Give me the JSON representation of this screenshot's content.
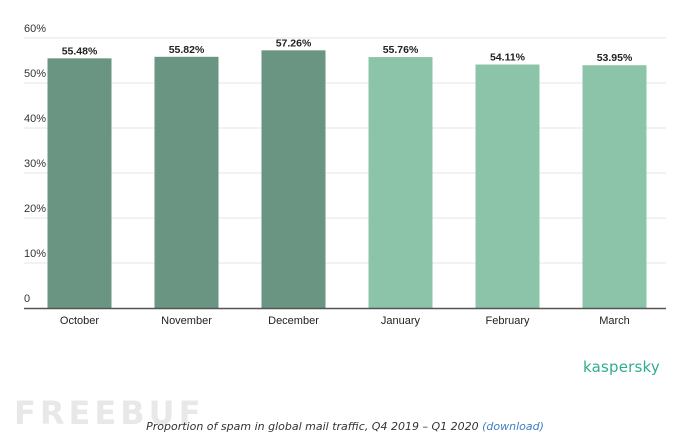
{
  "chart_data": {
    "type": "bar",
    "categories": [
      "October",
      "November",
      "December",
      "January",
      "February",
      "March"
    ],
    "values": [
      55.48,
      55.82,
      57.26,
      55.76,
      54.11,
      53.95
    ],
    "value_labels": [
      "55.48%",
      "55.82%",
      "57.26%",
      "55.76%",
      "54.11%",
      "53.95%"
    ],
    "ylim": [
      0,
      60
    ],
    "y_ticks": [
      0,
      10,
      20,
      30,
      40,
      50,
      60
    ],
    "y_tick_labels": [
      "0",
      "10%",
      "20%",
      "30%",
      "40%",
      "50%",
      "60%"
    ],
    "grid": true,
    "bar_colors": [
      "#6a9582",
      "#6a9582",
      "#6a9582",
      "#8cc4a9",
      "#8cc4a9",
      "#8cc4a9"
    ],
    "grid_color": "#e4e4e4",
    "axis_color": "#555555"
  },
  "brand": {
    "name": "kaspersky",
    "color": "#2fae8e"
  },
  "watermark": {
    "text": "FREEBUF"
  },
  "caption": {
    "text": "Proportion of spam in global mail traffic, Q4 2019 – Q1 2020",
    "link_text": "(download)",
    "link_color": "#3d7ec3"
  }
}
